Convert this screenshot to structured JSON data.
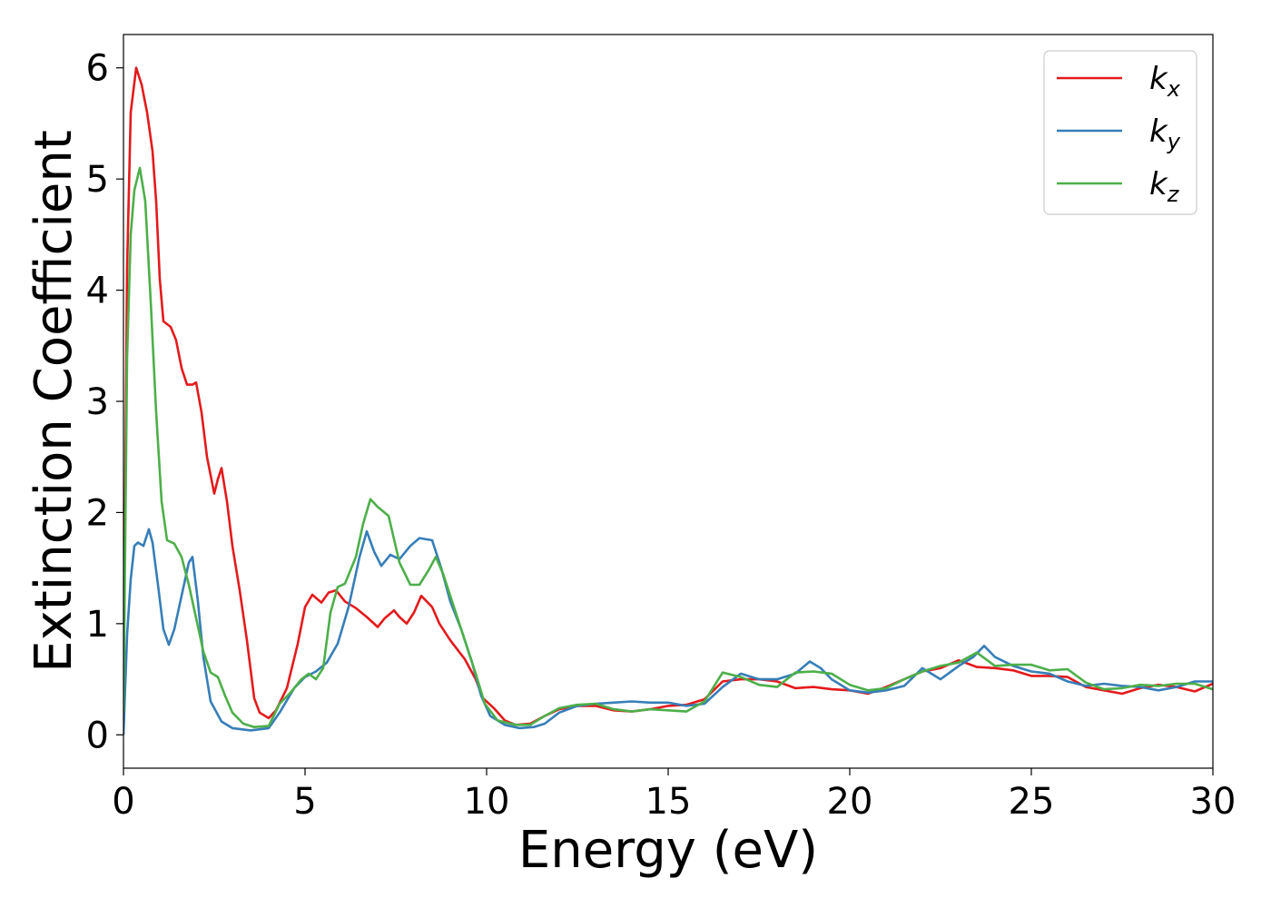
{
  "chart_data": {
    "type": "line",
    "xlabel": "Energy (eV)",
    "ylabel": "Extinction Coefficient",
    "xlim": [
      0,
      30
    ],
    "ylim": [
      -0.3,
      6.3
    ],
    "xticks": [
      "0",
      "5",
      "10",
      "15",
      "20",
      "25",
      "30"
    ],
    "yticks": [
      "0",
      "1",
      "2",
      "3",
      "4",
      "5",
      "6"
    ],
    "grid": false,
    "legend_position": "top-right",
    "series": [
      {
        "name": "k",
        "subscript": "x",
        "color": "#e41a1c",
        "points": [
          [
            0,
            0.3
          ],
          [
            0.1,
            4.2
          ],
          [
            0.2,
            5.6
          ],
          [
            0.35,
            6.0
          ],
          [
            0.5,
            5.85
          ],
          [
            0.65,
            5.6
          ],
          [
            0.8,
            5.25
          ],
          [
            0.9,
            4.8
          ],
          [
            1.0,
            4.1
          ],
          [
            1.1,
            3.72
          ],
          [
            1.3,
            3.67
          ],
          [
            1.45,
            3.55
          ],
          [
            1.6,
            3.3
          ],
          [
            1.75,
            3.15
          ],
          [
            1.9,
            3.15
          ],
          [
            2.0,
            3.17
          ],
          [
            2.15,
            2.9
          ],
          [
            2.3,
            2.5
          ],
          [
            2.5,
            2.17
          ],
          [
            2.6,
            2.3
          ],
          [
            2.7,
            2.4
          ],
          [
            2.85,
            2.1
          ],
          [
            3.0,
            1.7
          ],
          [
            3.2,
            1.3
          ],
          [
            3.4,
            0.85
          ],
          [
            3.6,
            0.33
          ],
          [
            3.75,
            0.2
          ],
          [
            4.0,
            0.15
          ],
          [
            4.2,
            0.22
          ],
          [
            4.5,
            0.42
          ],
          [
            4.8,
            0.82
          ],
          [
            5.0,
            1.15
          ],
          [
            5.2,
            1.26
          ],
          [
            5.45,
            1.19
          ],
          [
            5.65,
            1.28
          ],
          [
            5.85,
            1.3
          ],
          [
            6.1,
            1.2
          ],
          [
            6.4,
            1.14
          ],
          [
            6.7,
            1.06
          ],
          [
            7.0,
            0.97
          ],
          [
            7.2,
            1.05
          ],
          [
            7.45,
            1.12
          ],
          [
            7.6,
            1.06
          ],
          [
            7.8,
            1.0
          ],
          [
            8.0,
            1.1
          ],
          [
            8.2,
            1.25
          ],
          [
            8.5,
            1.15
          ],
          [
            8.7,
            1.0
          ],
          [
            9.0,
            0.85
          ],
          [
            9.4,
            0.68
          ],
          [
            9.7,
            0.5
          ],
          [
            9.9,
            0.33
          ],
          [
            10.2,
            0.24
          ],
          [
            10.5,
            0.13
          ],
          [
            10.8,
            0.09
          ],
          [
            11.2,
            0.1
          ],
          [
            11.6,
            0.17
          ],
          [
            12.0,
            0.23
          ],
          [
            12.5,
            0.26
          ],
          [
            13.0,
            0.26
          ],
          [
            13.5,
            0.22
          ],
          [
            14.0,
            0.21
          ],
          [
            14.5,
            0.23
          ],
          [
            15.0,
            0.26
          ],
          [
            15.5,
            0.27
          ],
          [
            16.0,
            0.32
          ],
          [
            16.5,
            0.48
          ],
          [
            17.0,
            0.5
          ],
          [
            17.5,
            0.5
          ],
          [
            18.0,
            0.48
          ],
          [
            18.5,
            0.42
          ],
          [
            19.0,
            0.43
          ],
          [
            19.5,
            0.41
          ],
          [
            20.0,
            0.4
          ],
          [
            20.5,
            0.37
          ],
          [
            21.0,
            0.43
          ],
          [
            21.5,
            0.5
          ],
          [
            22.0,
            0.57
          ],
          [
            22.5,
            0.6
          ],
          [
            23.0,
            0.67
          ],
          [
            23.5,
            0.61
          ],
          [
            24.0,
            0.6
          ],
          [
            24.5,
            0.58
          ],
          [
            25.0,
            0.53
          ],
          [
            25.5,
            0.53
          ],
          [
            26.0,
            0.52
          ],
          [
            26.5,
            0.43
          ],
          [
            27.0,
            0.4
          ],
          [
            27.5,
            0.37
          ],
          [
            28.0,
            0.42
          ],
          [
            28.5,
            0.45
          ],
          [
            29.0,
            0.43
          ],
          [
            29.5,
            0.39
          ],
          [
            30.0,
            0.46
          ]
        ]
      },
      {
        "name": "k",
        "subscript": "y",
        "color": "#377eb8",
        "points": [
          [
            0,
            0.0
          ],
          [
            0.1,
            0.9
          ],
          [
            0.2,
            1.4
          ],
          [
            0.3,
            1.7
          ],
          [
            0.4,
            1.73
          ],
          [
            0.55,
            1.7
          ],
          [
            0.7,
            1.85
          ],
          [
            0.8,
            1.73
          ],
          [
            0.95,
            1.35
          ],
          [
            1.1,
            0.95
          ],
          [
            1.25,
            0.81
          ],
          [
            1.4,
            0.95
          ],
          [
            1.6,
            1.25
          ],
          [
            1.8,
            1.55
          ],
          [
            1.9,
            1.6
          ],
          [
            2.05,
            1.2
          ],
          [
            2.2,
            0.7
          ],
          [
            2.4,
            0.3
          ],
          [
            2.7,
            0.12
          ],
          [
            3.0,
            0.06
          ],
          [
            3.5,
            0.04
          ],
          [
            4.0,
            0.06
          ],
          [
            4.3,
            0.2
          ],
          [
            4.7,
            0.42
          ],
          [
            5.0,
            0.52
          ],
          [
            5.3,
            0.57
          ],
          [
            5.6,
            0.65
          ],
          [
            5.9,
            0.82
          ],
          [
            6.2,
            1.15
          ],
          [
            6.5,
            1.6
          ],
          [
            6.7,
            1.83
          ],
          [
            6.9,
            1.65
          ],
          [
            7.1,
            1.52
          ],
          [
            7.35,
            1.62
          ],
          [
            7.6,
            1.58
          ],
          [
            7.9,
            1.7
          ],
          [
            8.15,
            1.77
          ],
          [
            8.5,
            1.75
          ],
          [
            8.75,
            1.5
          ],
          [
            9.0,
            1.2
          ],
          [
            9.3,
            0.95
          ],
          [
            9.6,
            0.65
          ],
          [
            9.85,
            0.35
          ],
          [
            10.1,
            0.17
          ],
          [
            10.5,
            0.09
          ],
          [
            10.9,
            0.06
          ],
          [
            11.3,
            0.07
          ],
          [
            11.6,
            0.1
          ],
          [
            12.0,
            0.2
          ],
          [
            12.5,
            0.26
          ],
          [
            13.0,
            0.28
          ],
          [
            13.5,
            0.29
          ],
          [
            14.0,
            0.3
          ],
          [
            14.5,
            0.29
          ],
          [
            15.0,
            0.29
          ],
          [
            15.5,
            0.26
          ],
          [
            16.0,
            0.28
          ],
          [
            16.5,
            0.43
          ],
          [
            17.0,
            0.55
          ],
          [
            17.5,
            0.5
          ],
          [
            18.0,
            0.5
          ],
          [
            18.5,
            0.55
          ],
          [
            18.9,
            0.66
          ],
          [
            19.2,
            0.6
          ],
          [
            19.5,
            0.5
          ],
          [
            20.0,
            0.4
          ],
          [
            20.5,
            0.38
          ],
          [
            21.0,
            0.4
          ],
          [
            21.5,
            0.44
          ],
          [
            22.0,
            0.6
          ],
          [
            22.5,
            0.5
          ],
          [
            23.0,
            0.62
          ],
          [
            23.4,
            0.7
          ],
          [
            23.7,
            0.8
          ],
          [
            24.0,
            0.7
          ],
          [
            24.5,
            0.62
          ],
          [
            25.0,
            0.57
          ],
          [
            25.5,
            0.55
          ],
          [
            26.0,
            0.48
          ],
          [
            26.5,
            0.44
          ],
          [
            27.0,
            0.46
          ],
          [
            27.5,
            0.44
          ],
          [
            28.0,
            0.43
          ],
          [
            28.5,
            0.4
          ],
          [
            29.0,
            0.43
          ],
          [
            29.5,
            0.48
          ],
          [
            30.0,
            0.48
          ]
        ]
      },
      {
        "name": "k",
        "subscript": "z",
        "color": "#4daf4a",
        "points": [
          [
            0,
            0.2
          ],
          [
            0.1,
            3.4
          ],
          [
            0.2,
            4.5
          ],
          [
            0.3,
            4.9
          ],
          [
            0.45,
            5.1
          ],
          [
            0.6,
            4.8
          ],
          [
            0.75,
            3.9
          ],
          [
            0.9,
            2.9
          ],
          [
            1.05,
            2.1
          ],
          [
            1.2,
            1.75
          ],
          [
            1.4,
            1.72
          ],
          [
            1.6,
            1.6
          ],
          [
            1.8,
            1.35
          ],
          [
            2.0,
            1.05
          ],
          [
            2.2,
            0.75
          ],
          [
            2.4,
            0.56
          ],
          [
            2.6,
            0.52
          ],
          [
            2.8,
            0.35
          ],
          [
            3.0,
            0.2
          ],
          [
            3.3,
            0.1
          ],
          [
            3.6,
            0.07
          ],
          [
            4.0,
            0.08
          ],
          [
            4.3,
            0.28
          ],
          [
            4.6,
            0.38
          ],
          [
            4.9,
            0.5
          ],
          [
            5.1,
            0.55
          ],
          [
            5.3,
            0.5
          ],
          [
            5.5,
            0.6
          ],
          [
            5.7,
            1.1
          ],
          [
            5.9,
            1.33
          ],
          [
            6.1,
            1.36
          ],
          [
            6.4,
            1.6
          ],
          [
            6.6,
            1.9
          ],
          [
            6.8,
            2.12
          ],
          [
            7.0,
            2.05
          ],
          [
            7.3,
            1.97
          ],
          [
            7.6,
            1.55
          ],
          [
            7.9,
            1.35
          ],
          [
            8.15,
            1.35
          ],
          [
            8.4,
            1.48
          ],
          [
            8.6,
            1.6
          ],
          [
            8.8,
            1.45
          ],
          [
            9.1,
            1.15
          ],
          [
            9.4,
            0.85
          ],
          [
            9.7,
            0.55
          ],
          [
            9.95,
            0.28
          ],
          [
            10.3,
            0.13
          ],
          [
            10.8,
            0.09
          ],
          [
            11.2,
            0.09
          ],
          [
            11.6,
            0.17
          ],
          [
            12.0,
            0.24
          ],
          [
            12.5,
            0.27
          ],
          [
            13.0,
            0.28
          ],
          [
            13.5,
            0.23
          ],
          [
            14.0,
            0.21
          ],
          [
            14.5,
            0.23
          ],
          [
            15.0,
            0.22
          ],
          [
            15.5,
            0.21
          ],
          [
            16.0,
            0.3
          ],
          [
            16.5,
            0.56
          ],
          [
            17.0,
            0.52
          ],
          [
            17.5,
            0.45
          ],
          [
            18.0,
            0.43
          ],
          [
            18.5,
            0.56
          ],
          [
            19.0,
            0.57
          ],
          [
            19.5,
            0.55
          ],
          [
            20.0,
            0.45
          ],
          [
            20.5,
            0.4
          ],
          [
            21.0,
            0.42
          ],
          [
            21.5,
            0.5
          ],
          [
            22.0,
            0.57
          ],
          [
            22.5,
            0.62
          ],
          [
            23.0,
            0.65
          ],
          [
            23.5,
            0.74
          ],
          [
            24.0,
            0.62
          ],
          [
            24.5,
            0.63
          ],
          [
            25.0,
            0.63
          ],
          [
            25.5,
            0.58
          ],
          [
            26.0,
            0.59
          ],
          [
            26.5,
            0.47
          ],
          [
            27.0,
            0.41
          ],
          [
            27.5,
            0.42
          ],
          [
            28.0,
            0.45
          ],
          [
            28.5,
            0.44
          ],
          [
            29.0,
            0.46
          ],
          [
            29.5,
            0.46
          ],
          [
            30.0,
            0.41
          ]
        ]
      }
    ]
  }
}
